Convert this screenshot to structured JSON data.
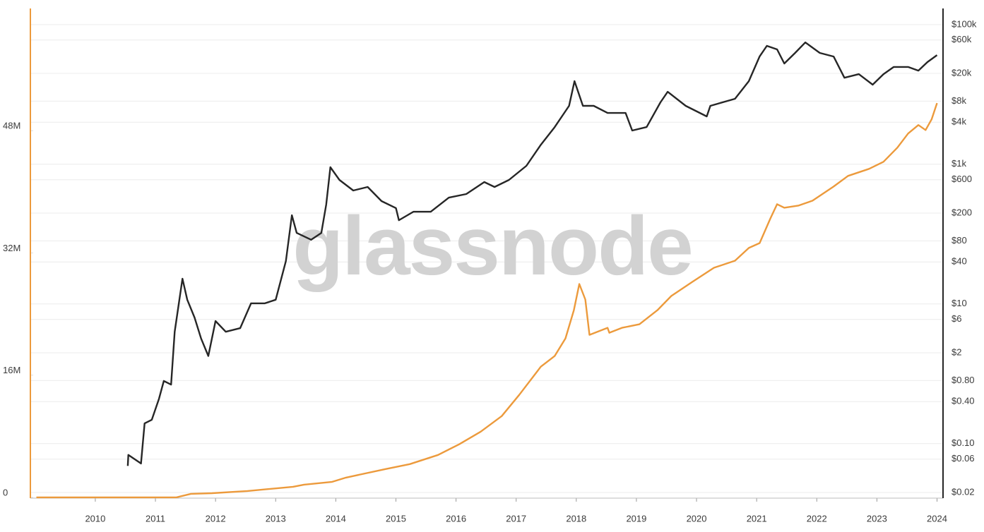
{
  "chart_data": {
    "type": "line",
    "watermark": "glassnode",
    "xlim": [
      2008.92,
      2024.1
    ],
    "xticks": [
      2010,
      2011,
      2012,
      2013,
      2014,
      2015,
      2016,
      2017,
      2018,
      2019,
      2020,
      2021,
      2022,
      2023,
      2024
    ],
    "ylim": [
      -100000,
      64000000
    ],
    "yticks": [
      {
        "value": 0,
        "label": "0"
      },
      {
        "value": 16000000,
        "label": "16M"
      },
      {
        "value": 32000000,
        "label": "32M"
      },
      {
        "value": 48000000,
        "label": "48M"
      }
    ],
    "y2lim": [
      0.0166,
      170000
    ],
    "y2log": true,
    "y2ticks": [
      {
        "value": 0.02,
        "label": "$0.02"
      },
      {
        "value": 0.06,
        "label": "$0.06"
      },
      {
        "value": 0.1,
        "label": "$0.10"
      },
      {
        "value": 0.4,
        "label": "$0.40"
      },
      {
        "value": 0.8,
        "label": "$0.80"
      },
      {
        "value": 2,
        "label": "$2"
      },
      {
        "value": 6,
        "label": "$6"
      },
      {
        "value": 10,
        "label": "$10"
      },
      {
        "value": 40,
        "label": "$40"
      },
      {
        "value": 80,
        "label": "$80"
      },
      {
        "value": 200,
        "label": "$200"
      },
      {
        "value": 600,
        "label": "$600"
      },
      {
        "value": 1000,
        "label": "$1k"
      },
      {
        "value": 4000,
        "label": "$4k"
      },
      {
        "value": 8000,
        "label": "$8k"
      },
      {
        "value": 20000,
        "label": "$20k"
      },
      {
        "value": 60000,
        "label": "$60k"
      },
      {
        "value": 100000,
        "label": "$100k"
      }
    ],
    "grid": true,
    "series": [
      {
        "color": "#ec9a3c",
        "axis": "y",
        "x": [
          2009.02,
          2011.35,
          2011.59,
          2011.94,
          2012.53,
          2013.29,
          2013.47,
          2013.94,
          2014.17,
          2014.82,
          2015.23,
          2015.7,
          2016.05,
          2016.41,
          2016.76,
          2017.05,
          2017.41,
          2017.64,
          2017.82,
          2017.96,
          2018.05,
          2018.15,
          2018.22,
          2018.52,
          2018.55,
          2018.76,
          2019.05,
          2019.35,
          2019.58,
          2019.93,
          2020.29,
          2020.64,
          2020.87,
          2021.05,
          2021.23,
          2021.34,
          2021.46,
          2021.7,
          2021.93,
          2022.28,
          2022.52,
          2022.87,
          2023.11,
          2023.34,
          2023.52,
          2023.69,
          2023.81,
          2023.91,
          2024.0
        ],
        "values": [
          0,
          0,
          460000,
          550000,
          830000,
          1390000,
          1660000,
          2030000,
          2590000,
          3700000,
          4350000,
          5550000,
          6940000,
          8600000,
          10640000,
          13410000,
          17110000,
          18500000,
          20810000,
          24510000,
          27930000,
          25900000,
          21270000,
          22200000,
          21550000,
          22200000,
          22660000,
          24510000,
          26360000,
          28210000,
          30060000,
          30980000,
          32650000,
          33290000,
          36530000,
          38380000,
          37920000,
          38200000,
          38840000,
          40690000,
          42080000,
          43010000,
          43930000,
          45780000,
          47630000,
          48740000,
          48090000,
          49480000,
          51610000
        ]
      },
      {
        "color": "#262626",
        "axis": "y2",
        "x": [
          2010.54,
          2010.55,
          2010.76,
          2010.82,
          2010.94,
          2011.06,
          2011.14,
          2011.26,
          2011.32,
          2011.45,
          2011.53,
          2011.65,
          2011.76,
          2011.88,
          2012.0,
          2012.17,
          2012.41,
          2012.59,
          2012.82,
          2013.0,
          2013.17,
          2013.27,
          2013.35,
          2013.59,
          2013.76,
          2013.84,
          2013.91,
          2014.06,
          2014.29,
          2014.53,
          2014.76,
          2015.0,
          2015.05,
          2015.29,
          2015.58,
          2015.88,
          2016.17,
          2016.47,
          2016.64,
          2016.88,
          2017.17,
          2017.41,
          2017.64,
          2017.88,
          2017.97,
          2018.11,
          2018.29,
          2018.52,
          2018.82,
          2018.93,
          2019.17,
          2019.4,
          2019.52,
          2019.82,
          2020.17,
          2020.23,
          2020.64,
          2020.87,
          2021.05,
          2021.17,
          2021.34,
          2021.46,
          2021.64,
          2021.81,
          2022.05,
          2022.28,
          2022.46,
          2022.7,
          2022.93,
          2023.11,
          2023.28,
          2023.52,
          2023.69,
          2023.84,
          2024.0
        ],
        "values": [
          0.048,
          0.069,
          0.052,
          0.195,
          0.22,
          0.44,
          0.79,
          0.7,
          4.0,
          23,
          11.5,
          6.4,
          3.2,
          1.8,
          5.7,
          4.0,
          4.5,
          10.2,
          10.2,
          11.5,
          41,
          186,
          104,
          83,
          104,
          265,
          907,
          597,
          421,
          473,
          297,
          236,
          158,
          209,
          209,
          333,
          375,
          556,
          473,
          597,
          950,
          1900,
          3400,
          6860,
          15500,
          6860,
          6860,
          5430,
          5430,
          3040,
          3410,
          7700,
          10900,
          6860,
          4840,
          6860,
          8650,
          15500,
          35000,
          49500,
          44100,
          27700,
          39300,
          55600,
          39300,
          34900,
          17300,
          19500,
          13800,
          19500,
          24700,
          24700,
          21900,
          29000,
          36500
        ]
      }
    ]
  }
}
